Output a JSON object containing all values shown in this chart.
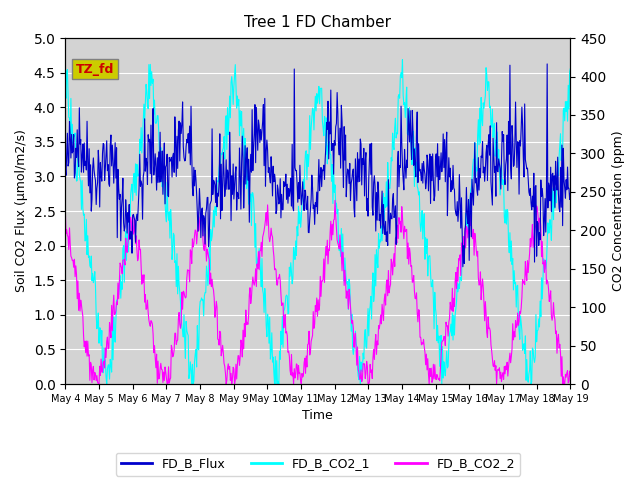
{
  "title": "Tree 1 FD Chamber",
  "xlabel": "Time",
  "ylabel_left": "Soil CO2 Flux (μmol/m2/s)",
  "ylabel_right": "CO2 Concentration (ppm)",
  "ylim_left": [
    0.0,
    5.0
  ],
  "ylim_right": [
    0,
    450
  ],
  "yticks_left": [
    0.0,
    0.5,
    1.0,
    1.5,
    2.0,
    2.5,
    3.0,
    3.5,
    4.0,
    4.5,
    5.0
  ],
  "yticks_right": [
    0,
    50,
    100,
    150,
    200,
    250,
    300,
    350,
    400,
    450
  ],
  "xtick_labels": [
    "May 4",
    "May 5",
    "May 6",
    "May 7",
    "May 8",
    "May 9",
    "May 10",
    "May 11",
    "May 12",
    "May 13",
    "May 14",
    "May 15",
    "May 16",
    "May 17",
    "May 18",
    "May 19"
  ],
  "color_flux": "#0000CC",
  "color_co2_1": "#00FFFF",
  "color_co2_2": "#FF00FF",
  "legend_labels": [
    "FD_B_Flux",
    "FD_B_CO2_1",
    "FD_B_CO2_2"
  ],
  "annotation_text": "TZ_fd",
  "annotation_color": "#CC0000",
  "annotation_bg": "#CCCC00",
  "bg_color": "#D3D3D3",
  "grid_color": "white",
  "n_days": 15,
  "pts_per_day": 48,
  "seed": 42
}
